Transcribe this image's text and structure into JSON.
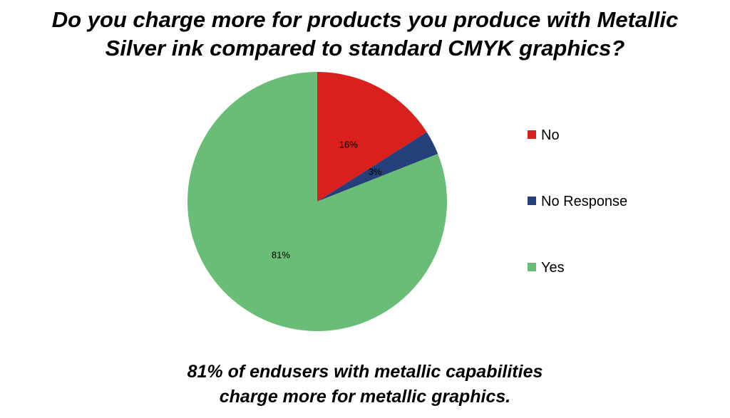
{
  "title": {
    "line1": "Do you charge more for products you produce with Metallic",
    "line2": "Silver ink compared to standard CMYK graphics?"
  },
  "caption": {
    "line1": "81% of endusers with metallic capabilities",
    "line2": "charge more for metallic graphics."
  },
  "chart_data": {
    "type": "pie",
    "slices": [
      {
        "name": "No",
        "value": 16,
        "label": "16%",
        "color": "#d9201c"
      },
      {
        "name": "No Response",
        "value": 3,
        "label": "3%",
        "color": "#243f7a"
      },
      {
        "name": "Yes",
        "value": 81,
        "label": "81%",
        "color": "#6abd76"
      }
    ],
    "legend": {
      "position": "right",
      "entries": [
        "No",
        "No Response",
        "Yes"
      ]
    }
  }
}
